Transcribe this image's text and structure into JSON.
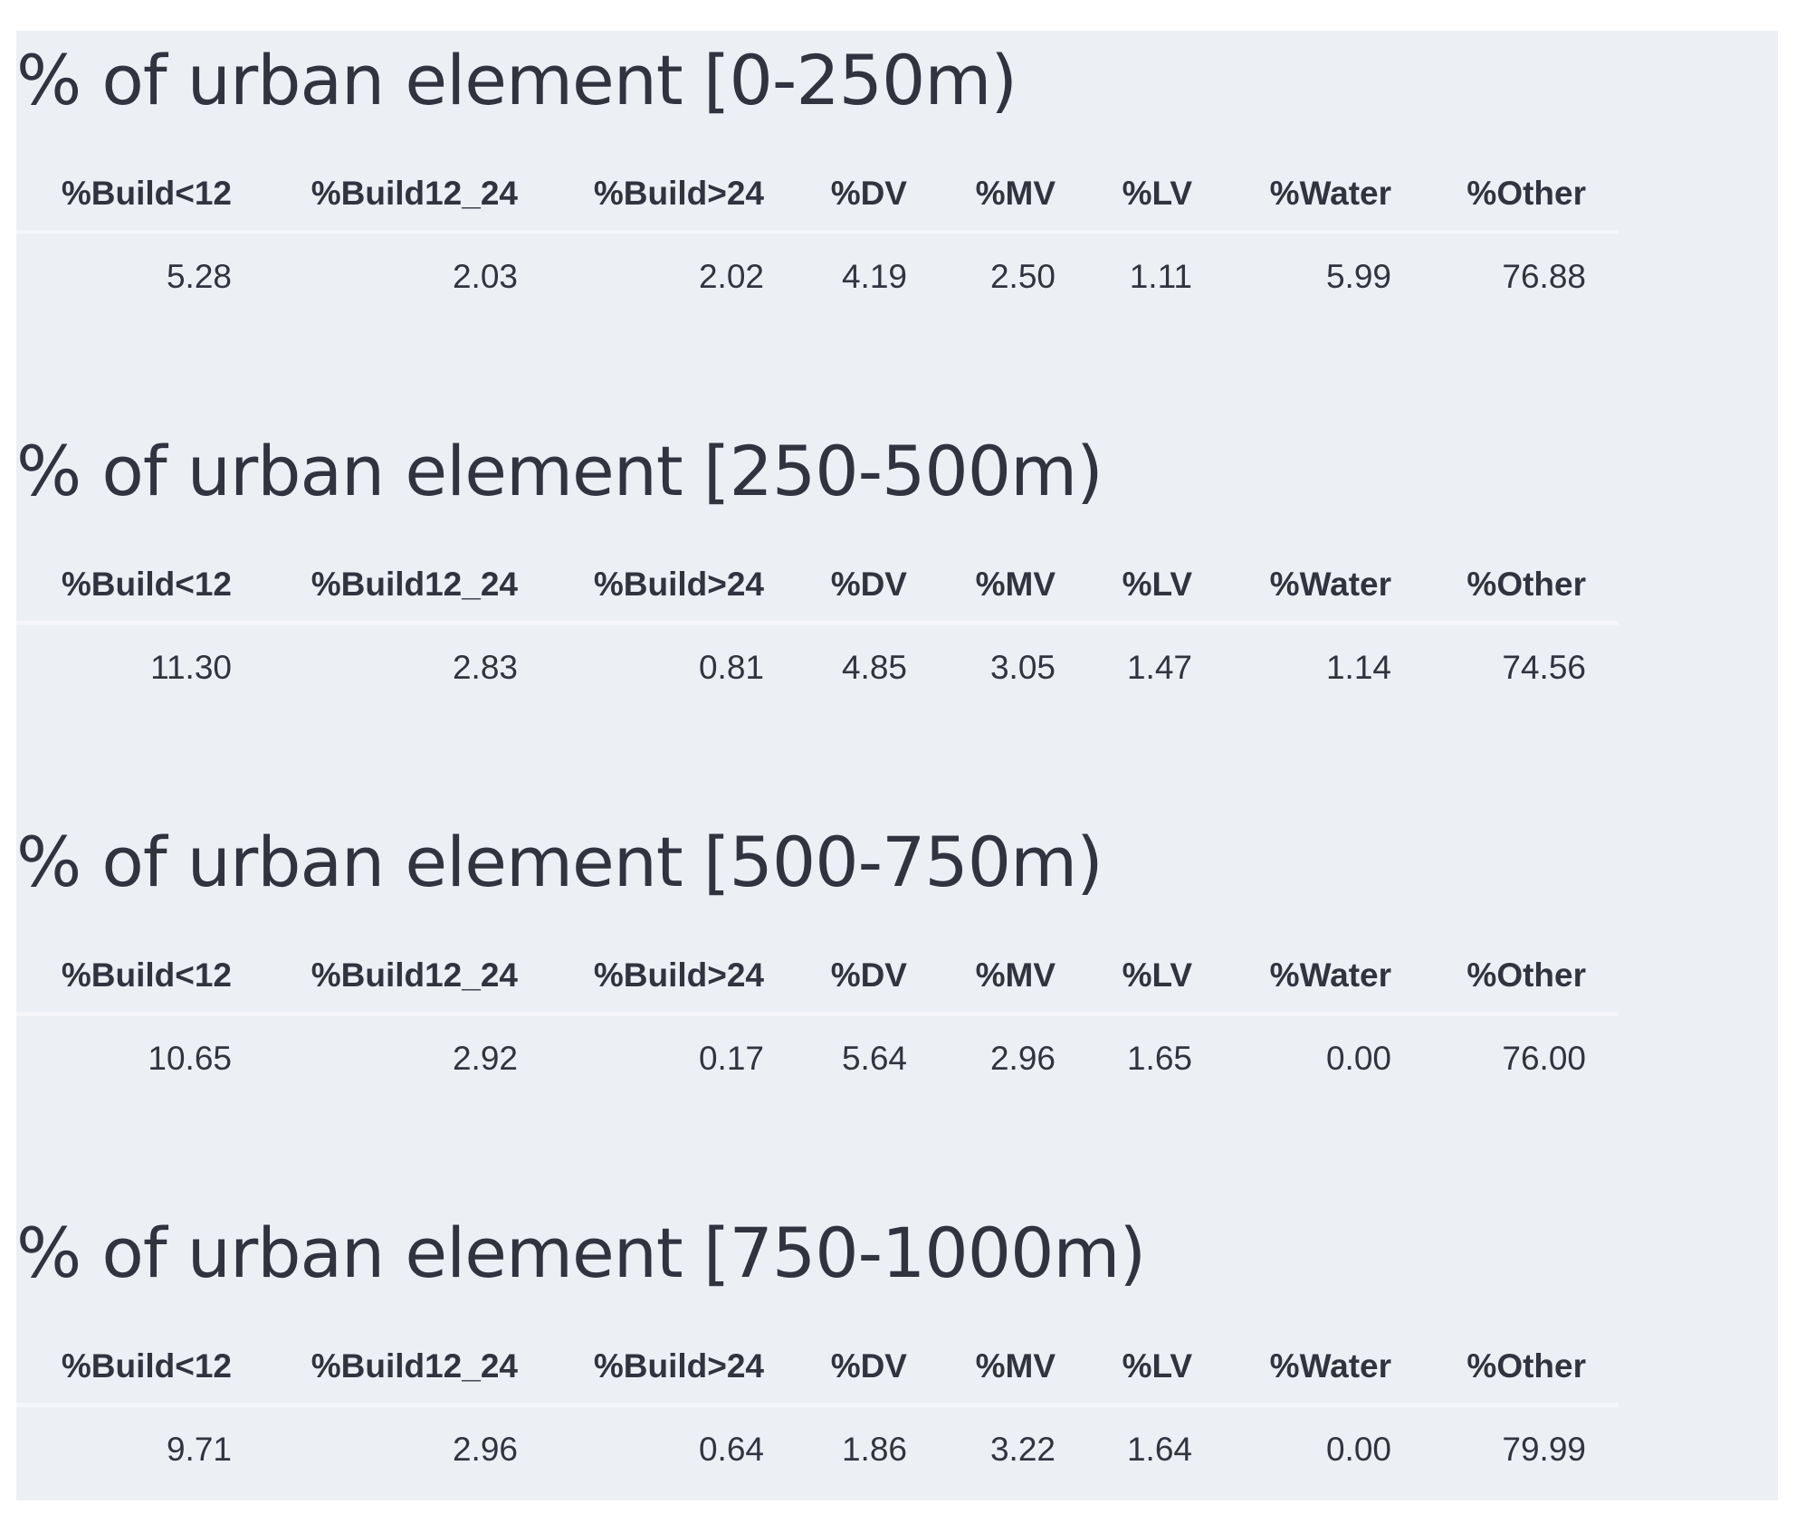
{
  "columns": [
    "%Build<12",
    "%Build12_24",
    "%Build>24",
    "%DV",
    "%MV",
    "%LV",
    "%Water",
    "%Other"
  ],
  "sections": [
    {
      "title": "% of urban element [0-250m)",
      "values": [
        "5.28",
        "2.03",
        "2.02",
        "4.19",
        "2.50",
        "1.11",
        "5.99",
        "76.88"
      ]
    },
    {
      "title": "% of urban element [250-500m)",
      "values": [
        "11.30",
        "2.83",
        "0.81",
        "4.85",
        "3.05",
        "1.47",
        "1.14",
        "74.56"
      ]
    },
    {
      "title": "% of urban element [500-750m)",
      "values": [
        "10.65",
        "2.92",
        "0.17",
        "5.64",
        "2.96",
        "1.65",
        "0.00",
        "76.00"
      ]
    },
    {
      "title": "% of urban element [750-1000m)",
      "values": [
        "9.71",
        "2.96",
        "0.64",
        "1.86",
        "3.22",
        "1.64",
        "0.00",
        "79.99"
      ]
    }
  ]
}
